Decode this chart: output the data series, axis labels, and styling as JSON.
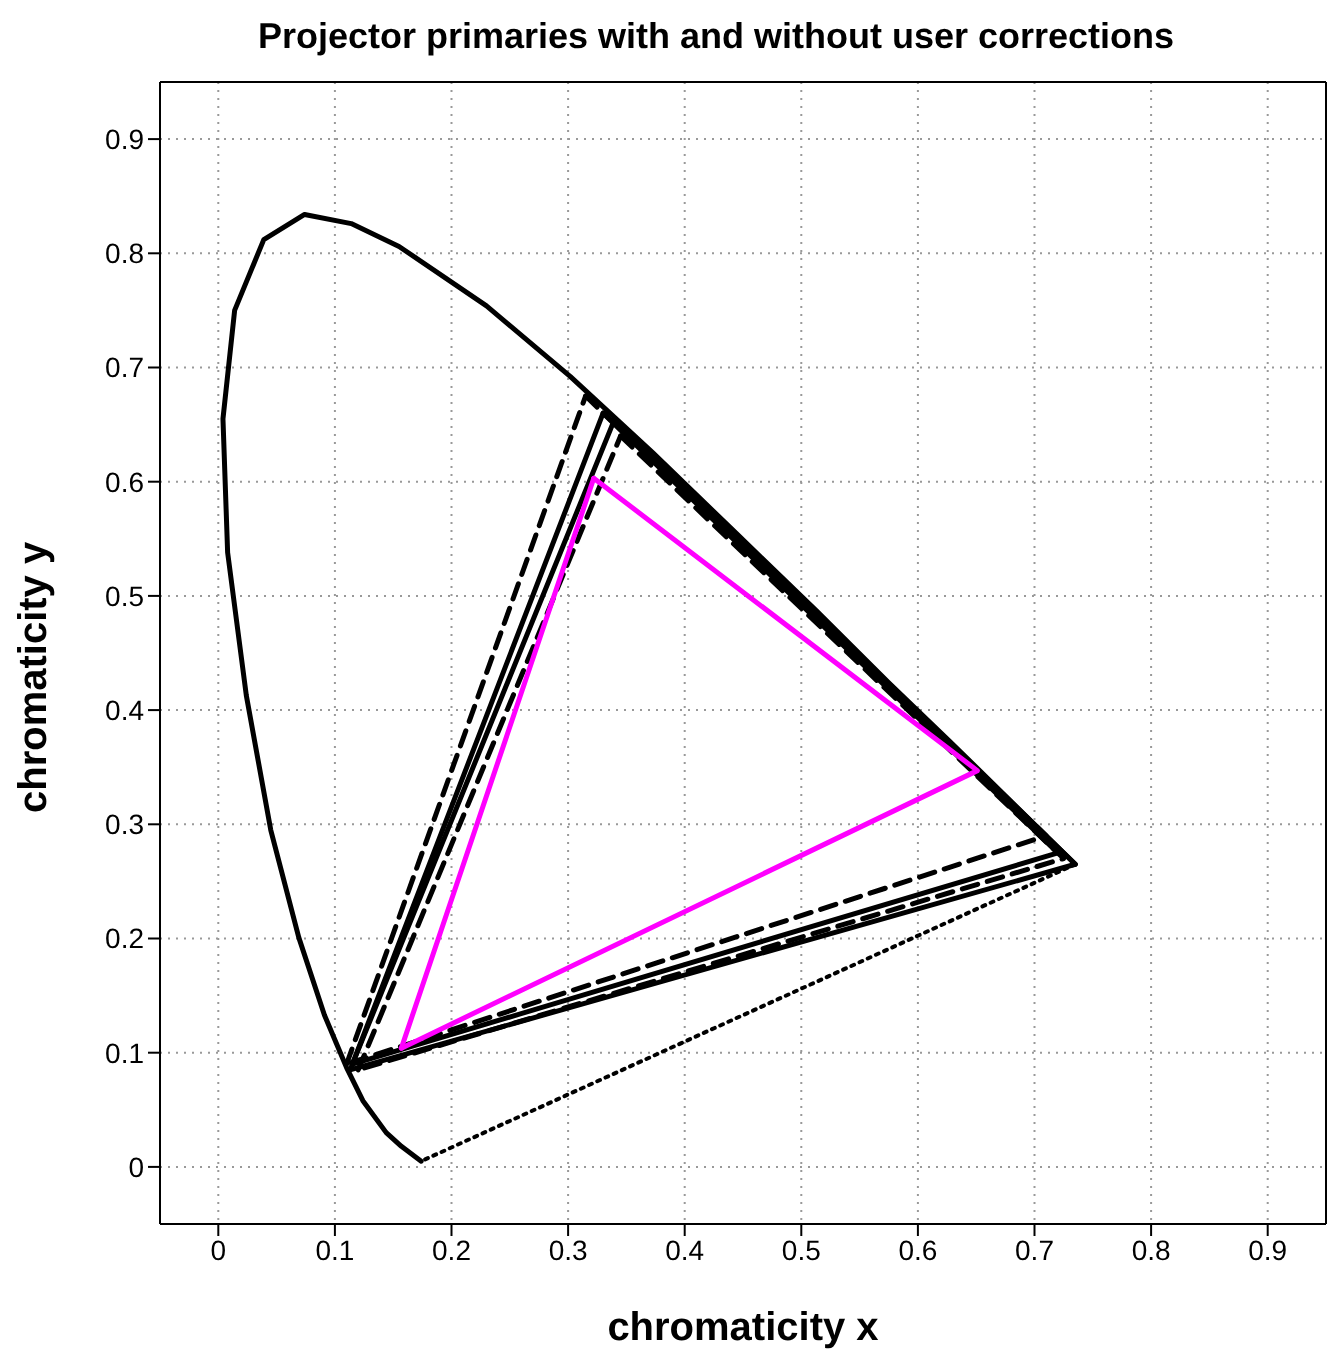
{
  "chart_data": {
    "type": "line",
    "title": "Projector primaries with and without user corrections",
    "xlabel": "chromaticity x",
    "ylabel": "chromaticity y",
    "xlim": [
      -0.05,
      0.95
    ],
    "ylim": [
      -0.05,
      0.95
    ],
    "xticks": [
      0,
      0.1,
      0.2,
      0.3,
      0.4,
      0.5,
      0.6,
      0.7,
      0.8,
      0.9
    ],
    "yticks": [
      0,
      0.1,
      0.2,
      0.3,
      0.4,
      0.5,
      0.6,
      0.7,
      0.8,
      0.9
    ],
    "grid": true,
    "marker": "none",
    "series": [
      {
        "color": "#000000",
        "line_style": "solid",
        "x": [
          0.174,
          0.157,
          0.144,
          0.124,
          0.11,
          0.091,
          0.069,
          0.045,
          0.024,
          0.008,
          0.004,
          0.014,
          0.039,
          0.074,
          0.114,
          0.155,
          0.23,
          0.302,
          0.373,
          0.444,
          0.513,
          0.575,
          0.627,
          0.692,
          0.719,
          0.735
        ],
        "values": [
          0.005,
          0.018,
          0.03,
          0.058,
          0.087,
          0.133,
          0.201,
          0.295,
          0.413,
          0.538,
          0.655,
          0.75,
          0.812,
          0.834,
          0.826,
          0.806,
          0.754,
          0.692,
          0.625,
          0.555,
          0.487,
          0.424,
          0.373,
          0.308,
          0.281,
          0.265
        ]
      },
      {
        "color": "#000000",
        "line_style": "dotted",
        "x": [
          0.735,
          0.174
        ],
        "values": [
          0.265,
          0.005
        ]
      },
      {
        "color": "#000000",
        "line_style": "solid",
        "x": [
          0.34,
          0.735,
          0.113
        ],
        "values": [
          0.655,
          0.265,
          0.085
        ]
      },
      {
        "color": "#000000",
        "line_style": "solid",
        "x": [
          0.113,
          0.34
        ],
        "values": [
          0.085,
          0.655
        ]
      },
      {
        "color": "#000000",
        "line_style": "solid",
        "x": [
          0.33,
          0.72,
          0.115
        ],
        "values": [
          0.66,
          0.275,
          0.09
        ]
      },
      {
        "color": "#000000",
        "line_style": "solid",
        "x": [
          0.115,
          0.33
        ],
        "values": [
          0.09,
          0.66
        ]
      },
      {
        "color": "#000000",
        "line_style": "dashed",
        "x": [
          0.315,
          0.71,
          0.11
        ],
        "values": [
          0.675,
          0.29,
          0.09
        ]
      },
      {
        "color": "#000000",
        "line_style": "dashed",
        "x": [
          0.11,
          0.315
        ],
        "values": [
          0.09,
          0.675
        ]
      },
      {
        "color": "#000000",
        "line_style": "dashed",
        "x": [
          0.345,
          0.725,
          0.12
        ],
        "values": [
          0.64,
          0.27,
          0.085
        ]
      },
      {
        "color": "#000000",
        "line_style": "dashed",
        "x": [
          0.12,
          0.345
        ],
        "values": [
          0.085,
          0.64
        ]
      },
      {
        "color": "#ff00ff",
        "line_style": "solid",
        "x": [
          0.322,
          0.651,
          0.157
        ],
        "values": [
          0.603,
          0.347,
          0.104
        ]
      },
      {
        "color": "#ff00ff",
        "line_style": "solid",
        "x": [
          0.157,
          0.322
        ],
        "values": [
          0.104,
          0.603
        ]
      }
    ]
  }
}
